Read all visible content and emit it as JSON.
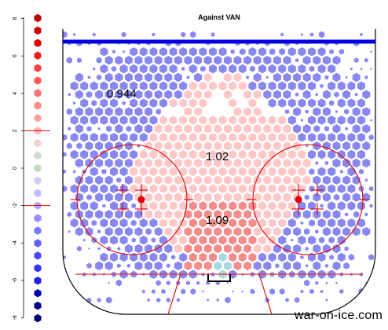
{
  "chart_data": {
    "type": "heatmap",
    "title": "Against VAN",
    "scale": {
      "ticks": [
        8,
        6,
        4,
        2,
        0,
        -2,
        -4,
        -6,
        -8
      ],
      "reference_lines": [
        2,
        -2
      ],
      "colors": [
        "#c00000",
        "#d00000",
        "#e00000",
        "#ee2020",
        "#ff4040",
        "#ff5858",
        "#ff7070",
        "#ff8888",
        "#ffa0a0",
        "#ffb8b8",
        "#f4d0d0",
        "#d0dcc8",
        "#c8d8c0",
        "#d0d0f0",
        "#c0c0ff",
        "#a8a8ff",
        "#9090ff",
        "#7878ff",
        "#6060ff",
        "#4848ff",
        "#3030ff",
        "#2020e0",
        "#0000b0",
        "#000090",
        "#000070"
      ]
    },
    "regions": [
      {
        "name": "outside",
        "value": "0.944",
        "color": "#8888f0"
      },
      {
        "name": "slot",
        "value": "1.02",
        "color": "#ffc8c8"
      },
      {
        "name": "home-plate",
        "value": "1.09",
        "color": "#f48c8c"
      },
      {
        "name": "crease",
        "value": "",
        "color": "#a8d8e0"
      }
    ]
  },
  "rink": {
    "blue_line_color": "#0000e6",
    "goal_line_color": "#e03030",
    "faceoff_color": "#e00000"
  },
  "watermark": "war-on-ice.com"
}
